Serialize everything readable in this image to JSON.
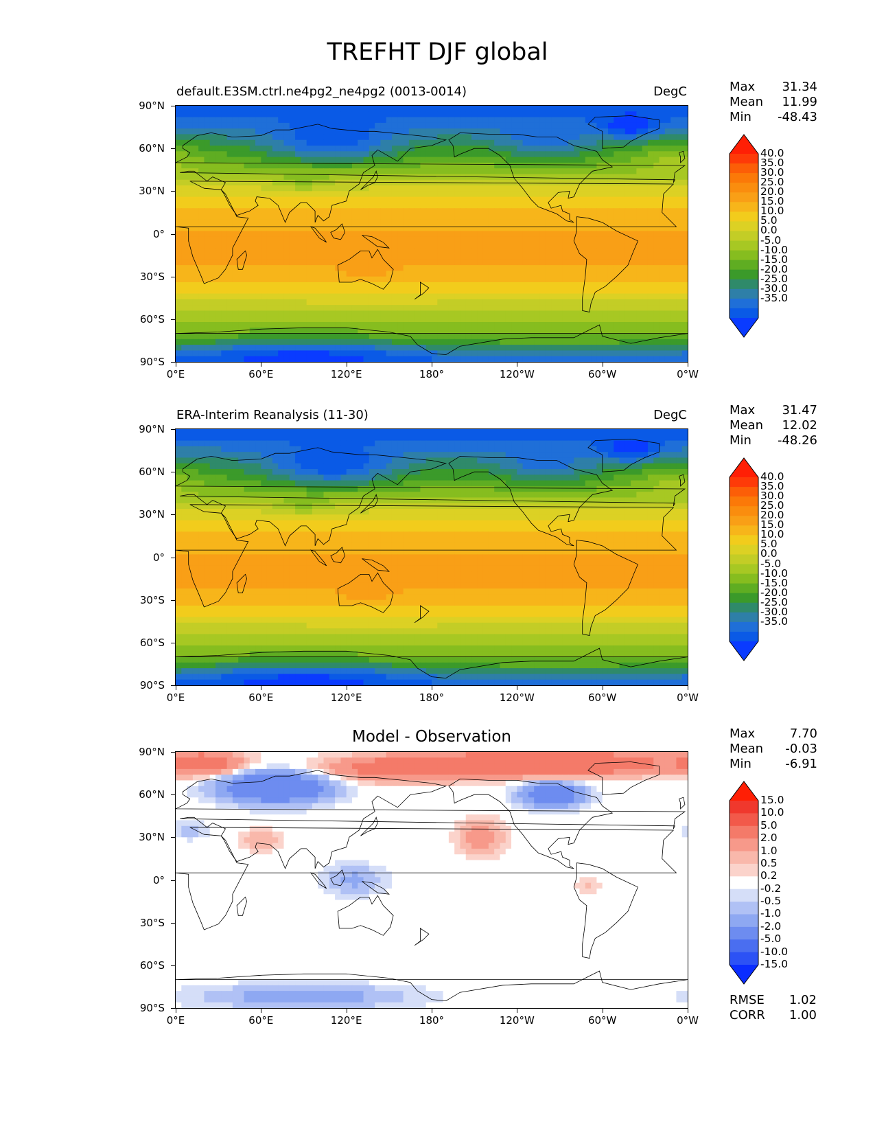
{
  "title": "TREFHT DJF global",
  "colors": {
    "temperature": [
      "#0a3bff",
      "#0a5ae6",
      "#1f6fd8",
      "#2e7fa8",
      "#2f8a6a",
      "#3b9a2a",
      "#5fad22",
      "#86bd1f",
      "#a7c823",
      "#c3cd26",
      "#dcd124",
      "#f2cc1c",
      "#f7b51a",
      "#f99f16",
      "#fa8d0e",
      "#fb7908",
      "#fc5e07",
      "#fe3a08",
      "#ff1f05"
    ],
    "difference": [
      "#0a2dff",
      "#2c52f5",
      "#4a6ef0",
      "#6d8cf0",
      "#8ea8f2",
      "#b0c1f5",
      "#d5def8",
      "#ffffff",
      "#fbd3cb",
      "#f9b8ab",
      "#f7998a",
      "#f47a69",
      "#f2594a",
      "#f0382d",
      "#ff1f05"
    ]
  },
  "panels": [
    {
      "id": "test",
      "left_title": "default.E3SM.ctrl.ne4pg2_ne4pg2 (0013-0014)",
      "right_title": "DegC",
      "center_title": "",
      "stats": [
        {
          "label": "Max",
          "value": "31.34"
        },
        {
          "label": "Mean",
          "value": "11.99"
        },
        {
          "label": "Min",
          "value": "-48.43"
        }
      ],
      "colorbar_levels": [
        "40.0",
        "35.0",
        "30.0",
        "25.0",
        "20.0",
        "15.0",
        "10.0",
        "5.0",
        "0.0",
        "-5.0",
        "-10.0",
        "-15.0",
        "-20.0",
        "-25.0",
        "-30.0",
        "-35.0"
      ],
      "metrics": []
    },
    {
      "id": "reference",
      "left_title": "ERA-Interim Reanalysis (11-30)",
      "right_title": "DegC",
      "center_title": "",
      "stats": [
        {
          "label": "Max",
          "value": "31.47"
        },
        {
          "label": "Mean",
          "value": "12.02"
        },
        {
          "label": "Min",
          "value": "-48.26"
        }
      ],
      "colorbar_levels": [
        "40.0",
        "35.0",
        "30.0",
        "25.0",
        "20.0",
        "15.0",
        "10.0",
        "5.0",
        "0.0",
        "-5.0",
        "-10.0",
        "-15.0",
        "-20.0",
        "-25.0",
        "-30.0",
        "-35.0"
      ],
      "metrics": []
    },
    {
      "id": "difference",
      "left_title": "",
      "right_title": "",
      "center_title": "Model - Observation",
      "stats": [
        {
          "label": "Max",
          "value": "7.70"
        },
        {
          "label": "Mean",
          "value": "-0.03"
        },
        {
          "label": "Min",
          "value": "-6.91"
        }
      ],
      "colorbar_levels": [
        "15.0",
        "10.0",
        "5.0",
        "2.0",
        "1.0",
        "0.5",
        "0.2",
        "-0.2",
        "-0.5",
        "-1.0",
        "-2.0",
        "-5.0",
        "-10.0",
        "-15.0"
      ],
      "metrics": [
        {
          "label": "RMSE",
          "value": "1.02"
        },
        {
          "label": "CORR",
          "value": "1.00"
        }
      ]
    }
  ],
  "axes": {
    "y_ticks": [
      "90°N",
      "60°N",
      "30°N",
      "0°",
      "30°S",
      "60°S",
      "90°S"
    ],
    "x_ticks": [
      "0°E",
      "60°E",
      "120°E",
      "180°",
      "120°W",
      "60°W",
      "0°W"
    ]
  },
  "chart_data": [
    {
      "type": "heatmap",
      "title": "default.E3SM.ctrl.ne4pg2_ne4pg2 (0013-0014)",
      "units": "DegC",
      "variable": "TREFHT",
      "season": "DJF",
      "xlim": [
        0,
        360
      ],
      "ylim": [
        -90,
        90
      ],
      "zonal_profile": {
        "lat": [
          90,
          75,
          60,
          45,
          30,
          15,
          0,
          -15,
          -30,
          -45,
          -60,
          -75,
          -90
        ],
        "value": [
          -35,
          -25,
          -12,
          -2,
          12,
          22,
          26,
          27,
          22,
          12,
          2,
          -8,
          -30
        ]
      },
      "max": 31.34,
      "mean": 11.99,
      "min": -48.43
    },
    {
      "type": "heatmap",
      "title": "ERA-Interim Reanalysis (11-30)",
      "units": "DegC",
      "variable": "TREFHT",
      "season": "DJF",
      "xlim": [
        0,
        360
      ],
      "ylim": [
        -90,
        90
      ],
      "zonal_profile": {
        "lat": [
          90,
          75,
          60,
          45,
          30,
          15,
          0,
          -15,
          -30,
          -45,
          -60,
          -75,
          -90
        ],
        "value": [
          -35,
          -24,
          -12,
          -2,
          12,
          22,
          26,
          27,
          22,
          12,
          2,
          -8,
          -30
        ]
      },
      "max": 31.47,
      "mean": 12.02,
      "min": -48.26
    },
    {
      "type": "heatmap",
      "title": "Model - Observation",
      "xlim": [
        0,
        360
      ],
      "ylim": [
        -90,
        90
      ],
      "zonal_profile": {
        "lat": [
          90,
          75,
          60,
          45,
          30,
          15,
          0,
          -15,
          -30,
          -45,
          -60,
          -75,
          -90
        ],
        "value": [
          3,
          2,
          -2,
          -0.5,
          0,
          0,
          0,
          0,
          0,
          0,
          0,
          -0.5,
          -0.5
        ]
      },
      "max": 7.7,
      "mean": -0.03,
      "min": -6.91,
      "rmse": 1.02,
      "corr": 1.0
    }
  ]
}
